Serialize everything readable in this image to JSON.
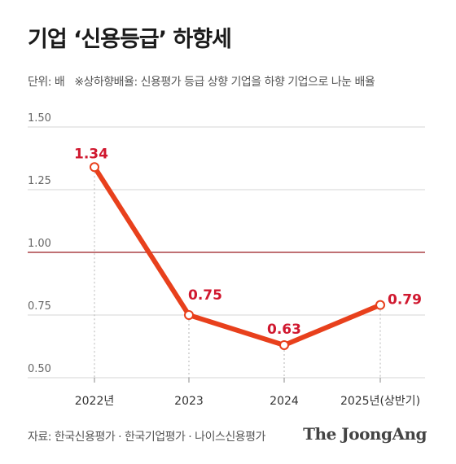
{
  "header": {
    "title": "기업 ‘신용등급’ 하향세",
    "unit_note": "단위: 배",
    "definition_note": "※상하향배율: 신용평가 등급 상향 기업을 하향 기업으로 나눈 배율"
  },
  "footer": {
    "source": "자료: 한국신용평가 · 한국기업평가 · 나이스신용평가",
    "brand": "The JoongAng"
  },
  "colors": {
    "line": "#e8401c",
    "label": "#d0182f",
    "reference": "#9b1c22",
    "grid": "#d6d6d6",
    "text": "#333333"
  },
  "chart_data": {
    "type": "line",
    "categories": [
      "2022년",
      "2023",
      "2024",
      "2025년(상반기)"
    ],
    "series": [
      {
        "values": [
          1.34,
          0.75,
          0.63,
          0.79
        ]
      }
    ],
    "data_labels": [
      "1.34",
      "0.75",
      "0.63",
      "0.79"
    ],
    "y_ticks": [
      "1.50",
      "1.25",
      "1.00",
      "0.75",
      "0.50"
    ],
    "y_tick_values": [
      1.5,
      1.25,
      1.0,
      0.75,
      0.5
    ],
    "ylim": [
      0.5,
      1.5
    ],
    "reference_line": 1.0,
    "grid": true
  }
}
